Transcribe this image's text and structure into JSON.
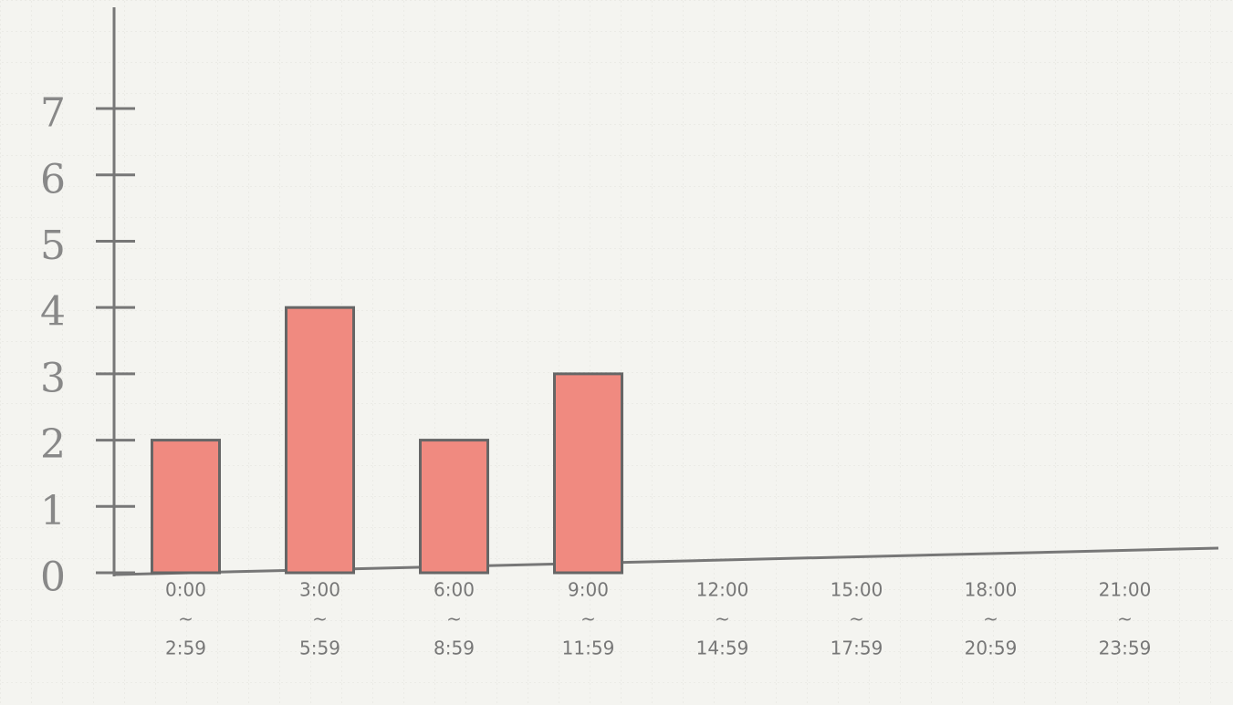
{
  "chart_data": {
    "type": "bar",
    "categories": [
      [
        "0:00",
        "~",
        "2:59"
      ],
      [
        "3:00",
        "~",
        "5:59"
      ],
      [
        "6:00",
        "~",
        "8:59"
      ],
      [
        "9:00",
        "~",
        "11:59"
      ],
      [
        "12:00",
        "~",
        "14:59"
      ],
      [
        "15:00",
        "~",
        "17:59"
      ],
      [
        "18:00",
        "~",
        "20:59"
      ],
      [
        "21:00",
        "~",
        "23:59"
      ]
    ],
    "values": [
      2,
      4,
      2,
      3,
      0,
      0,
      0,
      0
    ],
    "color": "#f08a80",
    "ylim": [
      0,
      8.5
    ],
    "yticks": [
      0,
      1,
      2,
      3,
      4,
      5,
      6,
      7
    ]
  }
}
